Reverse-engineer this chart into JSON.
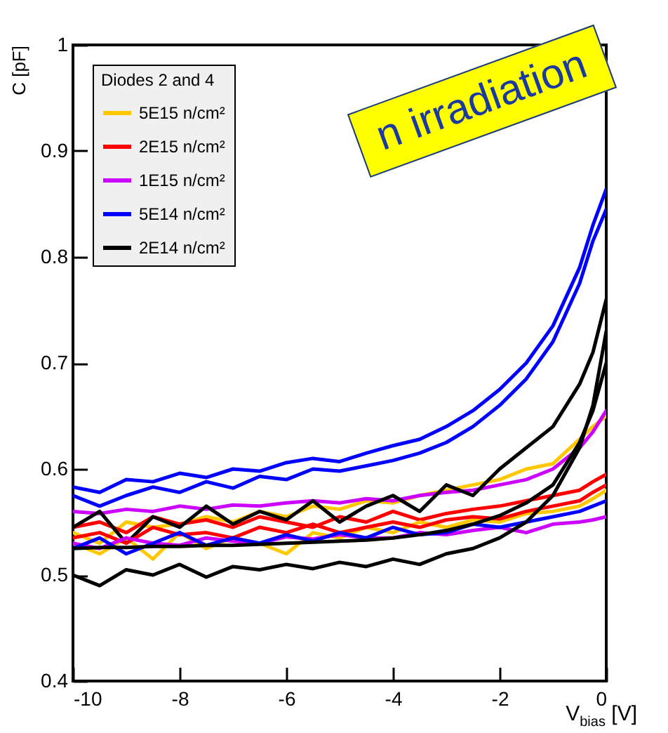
{
  "chart_data": {
    "type": "line",
    "xlabel": "V$_{bias}$ [V]",
    "ylabel": "C [pF]",
    "legend_title": "Diodes 2 and 4",
    "legend": "top left",
    "grid": false,
    "marker": "none",
    "line_style": "solid",
    "annotations": [
      "n irradiation"
    ],
    "xlim": [
      -10,
      0
    ],
    "xticks": [
      -10,
      -8,
      -6,
      -4,
      -2,
      0
    ],
    "ylim": [
      0.4,
      1
    ],
    "yticks": [
      0.4,
      0.5,
      0.6,
      0.7,
      0.8,
      0.9,
      1
    ],
    "x": [
      -10,
      -9.5,
      -9,
      -8.5,
      -8,
      -7.5,
      -7,
      -6.5,
      -6,
      -5.5,
      -5,
      -4.5,
      -4,
      -3.5,
      -3,
      -2.5,
      -2,
      -1.5,
      -1,
      -0.5,
      -0.25,
      0
    ],
    "series": [
      {
        "name": "5E15 n/cm²",
        "color": "#ffc800",
        "values": [
          0.54,
          0.53,
          0.55,
          0.545,
          0.548,
          0.555,
          0.55,
          0.56,
          0.555,
          0.565,
          0.562,
          0.57,
          0.568,
          0.575,
          0.58,
          0.585,
          0.59,
          0.6,
          0.605,
          0.628,
          0.64,
          0.65
        ]
      },
      {
        "color": "#ffc800",
        "values": [
          0.53,
          0.52,
          0.535,
          0.515,
          0.54,
          0.525,
          0.535,
          0.53,
          0.52,
          0.54,
          0.535,
          0.545,
          0.54,
          0.55,
          0.545,
          0.552,
          0.55,
          0.558,
          0.56,
          0.565,
          0.572,
          0.58
        ]
      },
      {
        "name": "2E15 n/cm²",
        "color": "#ff0000",
        "values": [
          0.545,
          0.55,
          0.54,
          0.555,
          0.548,
          0.552,
          0.545,
          0.555,
          0.55,
          0.545,
          0.555,
          0.55,
          0.56,
          0.552,
          0.558,
          0.562,
          0.565,
          0.57,
          0.575,
          0.58,
          0.588,
          0.595
        ]
      },
      {
        "color": "#ff0000",
        "values": [
          0.535,
          0.54,
          0.53,
          0.545,
          0.538,
          0.54,
          0.535,
          0.545,
          0.54,
          0.548,
          0.54,
          0.545,
          0.55,
          0.545,
          0.552,
          0.555,
          0.553,
          0.56,
          0.565,
          0.57,
          0.578,
          0.585
        ]
      },
      {
        "name": "1E15 n/cm²",
        "color": "#cc00ff",
        "values": [
          0.56,
          0.558,
          0.562,
          0.56,
          0.565,
          0.562,
          0.566,
          0.565,
          0.568,
          0.57,
          0.568,
          0.572,
          0.57,
          0.575,
          0.578,
          0.58,
          0.585,
          0.59,
          0.6,
          0.62,
          0.635,
          0.655
        ]
      },
      {
        "color": "#cc00ff",
        "values": [
          0.53,
          0.525,
          0.535,
          0.53,
          0.528,
          0.535,
          0.532,
          0.53,
          0.536,
          0.534,
          0.538,
          0.535,
          0.535,
          0.54,
          0.538,
          0.542,
          0.545,
          0.54,
          0.548,
          0.55,
          0.552,
          0.555
        ]
      },
      {
        "name": "5E14 n/cm²",
        "color": "#0000ff",
        "values": [
          0.583,
          0.578,
          0.59,
          0.588,
          0.596,
          0.592,
          0.6,
          0.598,
          0.606,
          0.61,
          0.607,
          0.615,
          0.622,
          0.628,
          0.64,
          0.655,
          0.675,
          0.7,
          0.735,
          0.79,
          0.83,
          0.864
        ]
      },
      {
        "color": "#0000ff",
        "values": [
          0.575,
          0.565,
          0.575,
          0.583,
          0.578,
          0.588,
          0.582,
          0.593,
          0.59,
          0.6,
          0.598,
          0.603,
          0.608,
          0.615,
          0.625,
          0.64,
          0.66,
          0.685,
          0.72,
          0.775,
          0.815,
          0.845
        ]
      },
      {
        "color": "#0000ff",
        "values": [
          0.525,
          0.535,
          0.52,
          0.53,
          0.54,
          0.528,
          0.535,
          0.53,
          0.538,
          0.532,
          0.54,
          0.535,
          0.545,
          0.538,
          0.54,
          0.548,
          0.545,
          0.55,
          0.555,
          0.56,
          0.565,
          0.57
        ]
      },
      {
        "name": "2E14 n/cm²",
        "color": "#000000",
        "values": [
          0.545,
          0.56,
          0.53,
          0.555,
          0.545,
          0.565,
          0.548,
          0.56,
          0.552,
          0.57,
          0.55,
          0.565,
          0.575,
          0.56,
          0.585,
          0.575,
          0.6,
          0.62,
          0.64,
          0.68,
          0.71,
          0.76
        ]
      },
      {
        "color": "#000000",
        "values": [
          0.525,
          0.526,
          0.526,
          0.527,
          0.527,
          0.528,
          0.528,
          0.529,
          0.53,
          0.531,
          0.532,
          0.533,
          0.535,
          0.538,
          0.542,
          0.548,
          0.556,
          0.568,
          0.585,
          0.625,
          0.655,
          0.7
        ]
      },
      {
        "color": "#000000",
        "values": [
          0.5,
          0.49,
          0.505,
          0.5,
          0.51,
          0.498,
          0.508,
          0.505,
          0.51,
          0.506,
          0.512,
          0.508,
          0.515,
          0.51,
          0.52,
          0.525,
          0.535,
          0.55,
          0.575,
          0.62,
          0.66,
          0.73
        ]
      }
    ]
  }
}
